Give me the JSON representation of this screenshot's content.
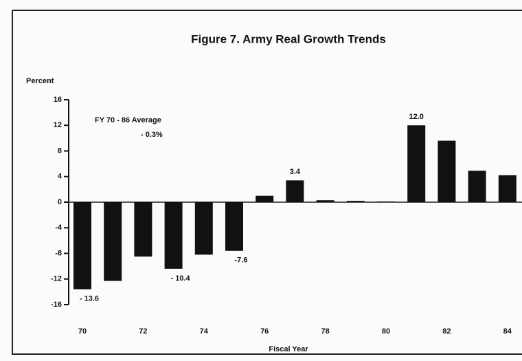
{
  "chart_data": {
    "type": "bar",
    "title": "Figure 7. Army Real Growth Trends",
    "y_label": "Percent",
    "x_label": "Fiscal Year",
    "annotation": [
      "FY 70 - 86 Average",
      "- 0.3%"
    ],
    "categories": [
      "70",
      null,
      "72",
      null,
      "74",
      null,
      "76",
      null,
      "78",
      null,
      "80",
      null,
      "82",
      null,
      "84"
    ],
    "values": [
      -13.6,
      -12.3,
      -8.5,
      -10.4,
      -8.2,
      -7.6,
      1.0,
      3.4,
      0.3,
      0.2,
      0.1,
      12.0,
      9.6,
      4.9,
      4.2
    ],
    "value_labels": [
      "- 13.6",
      null,
      null,
      "- 10.4",
      null,
      "-7.6",
      null,
      "3.4",
      null,
      null,
      null,
      "12.0",
      null,
      null,
      null
    ],
    "color": "#111111",
    "ylim": [
      -16,
      16
    ],
    "yticks": [
      16,
      12,
      8,
      4,
      0,
      -4,
      -8,
      -12,
      -16
    ]
  }
}
